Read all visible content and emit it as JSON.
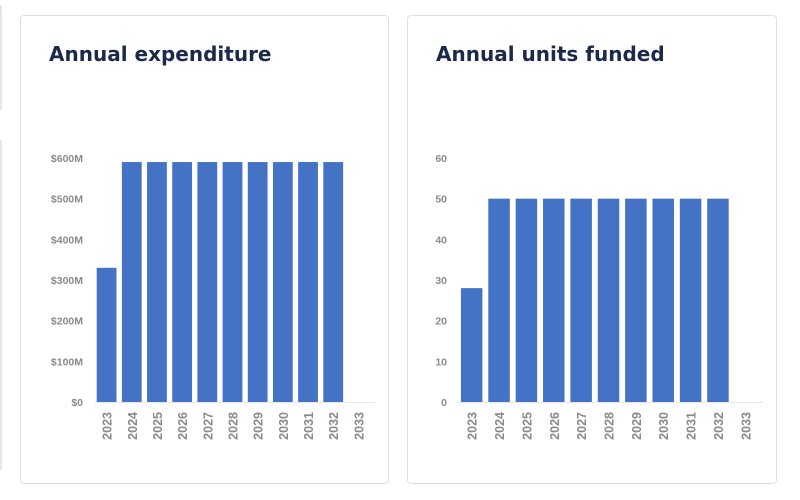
{
  "colors": {
    "bar": "#4472c4",
    "axis_text": "#8a8a8a",
    "title": "#1b2a4a",
    "card_border": "#dde1e7"
  },
  "chart_data": [
    {
      "type": "bar",
      "title": "Annual expenditure",
      "xlabel": "",
      "ylabel": "",
      "categories": [
        "2023",
        "2024",
        "2025",
        "2026",
        "2027",
        "2028",
        "2029",
        "2030",
        "2031",
        "2032",
        "2033"
      ],
      "values": [
        330,
        590,
        590,
        590,
        590,
        590,
        590,
        590,
        590,
        590,
        0
      ],
      "ylim": [
        0,
        600
      ],
      "y_ticks": [
        0,
        100,
        200,
        300,
        400,
        500,
        600
      ],
      "y_tick_labels": [
        "$0",
        "$100M",
        "$200M",
        "$300M",
        "$400M",
        "$500M",
        "$600M"
      ],
      "unit": "$M",
      "grid": false,
      "legend": "none"
    },
    {
      "type": "bar",
      "title": "Annual units funded",
      "xlabel": "",
      "ylabel": "",
      "categories": [
        "2023",
        "2024",
        "2025",
        "2026",
        "2027",
        "2028",
        "2029",
        "2030",
        "2031",
        "2032",
        "2033"
      ],
      "values": [
        28,
        50,
        50,
        50,
        50,
        50,
        50,
        50,
        50,
        50,
        0
      ],
      "ylim": [
        0,
        60
      ],
      "y_ticks": [
        0,
        10,
        20,
        30,
        40,
        50,
        60
      ],
      "y_tick_labels": [
        "0",
        "10",
        "20",
        "30",
        "40",
        "50",
        "60"
      ],
      "grid": false,
      "legend": "none"
    }
  ]
}
